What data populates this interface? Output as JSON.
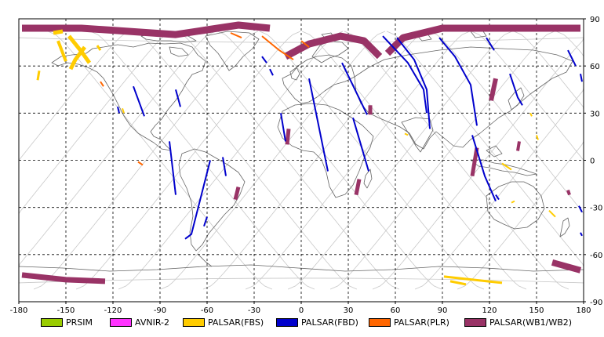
{
  "map": {
    "x_ticks": [
      "-180",
      "-150",
      "-120",
      "-90",
      "-60",
      "-30",
      "0",
      "30",
      "60",
      "90",
      "120",
      "150",
      "180"
    ],
    "y_ticks": [
      "90",
      "60",
      "30",
      "0",
      "-30",
      "-60",
      "-90"
    ],
    "x_range": [
      -180,
      180
    ],
    "y_range": [
      -90,
      90
    ],
    "grid": "dashed",
    "colors": {
      "land_outline": "#666666",
      "orbit_track": "#c8c8c8",
      "grid": "#000000"
    }
  },
  "legend": [
    {
      "label": "PRSIM",
      "color": "#99cc00"
    },
    {
      "label": "AVNIR-2",
      "color": "#ff33ff"
    },
    {
      "label": "PALSAR(FBS)",
      "color": "#ffcc00"
    },
    {
      "label": "PALSAR(FBD)",
      "color": "#0000cc"
    },
    {
      "label": "PALSAR(PLR)",
      "color": "#ff6600"
    },
    {
      "label": "PALSAR(WB1/WB2)",
      "color": "#993366"
    }
  ],
  "observations": [
    {
      "sensor": "PALSAR(WB1/WB2)",
      "path": [
        [
          -178,
          84
        ],
        [
          -140,
          84
        ],
        [
          -110,
          82
        ],
        [
          -80,
          80
        ],
        [
          -60,
          83
        ],
        [
          -40,
          86
        ],
        [
          -20,
          84
        ]
      ],
      "width": 9
    },
    {
      "sensor": "PALSAR(WB1/WB2)",
      "path": [
        [
          -10,
          66
        ],
        [
          5,
          74
        ],
        [
          25,
          79
        ],
        [
          40,
          76
        ],
        [
          50,
          66
        ]
      ],
      "width": 9
    },
    {
      "sensor": "PALSAR(WB1/WB2)",
      "path": [
        [
          55,
          68
        ],
        [
          65,
          78
        ],
        [
          90,
          84
        ],
        [
          130,
          84
        ],
        [
          178,
          84
        ]
      ],
      "width": 9
    },
    {
      "sensor": "PALSAR(WB1/WB2)",
      "path": [
        [
          -178,
          -73
        ],
        [
          -150,
          -76
        ],
        [
          -125,
          -77
        ]
      ],
      "width": 7
    },
    {
      "sensor": "PALSAR(WB1/WB2)",
      "path": [
        [
          160,
          -65
        ],
        [
          178,
          -70
        ]
      ],
      "width": 8
    },
    {
      "sensor": "PALSAR(WB1/WB2)",
      "path": [
        [
          124,
          52
        ],
        [
          121,
          38
        ]
      ],
      "width": 6
    },
    {
      "sensor": "PALSAR(WB1/WB2)",
      "path": [
        [
          112,
          8
        ],
        [
          109,
          -10
        ]
      ],
      "width": 5
    },
    {
      "sensor": "PALSAR(WB1/WB2)",
      "path": [
        [
          -8,
          20
        ],
        [
          -9,
          10
        ]
      ],
      "width": 5
    },
    {
      "sensor": "PALSAR(WB1/WB2)",
      "path": [
        [
          44,
          35
        ],
        [
          44,
          29
        ]
      ],
      "width": 5
    },
    {
      "sensor": "PALSAR(WB1/WB2)",
      "path": [
        [
          37,
          -12
        ],
        [
          35,
          -22
        ]
      ],
      "width": 5
    },
    {
      "sensor": "PALSAR(WB1/WB2)",
      "path": [
        [
          -40,
          -17
        ],
        [
          -42,
          -25
        ]
      ],
      "width": 5
    },
    {
      "sensor": "PALSAR(WB1/WB2)",
      "path": [
        [
          139,
          12
        ],
        [
          138,
          6
        ]
      ],
      "width": 4
    },
    {
      "sensor": "PALSAR(WB1/WB2)",
      "path": [
        [
          170,
          -19
        ],
        [
          171,
          -22
        ]
      ],
      "width": 4
    },
    {
      "sensor": "PALSAR(FBD)",
      "path": [
        [
          -107,
          47
        ],
        [
          -100,
          28
        ]
      ],
      "width": 2
    },
    {
      "sensor": "PALSAR(FBD)",
      "path": [
        [
          -80,
          45
        ],
        [
          -77,
          34
        ]
      ],
      "width": 2
    },
    {
      "sensor": "PALSAR(FBD)",
      "path": [
        [
          -84,
          12
        ],
        [
          -80,
          -22
        ]
      ],
      "width": 2
    },
    {
      "sensor": "PALSAR(FBD)",
      "path": [
        [
          -58,
          0
        ],
        [
          -70,
          -47
        ],
        [
          -74,
          -50
        ]
      ],
      "width": 2
    },
    {
      "sensor": "PALSAR(FBD)",
      "path": [
        [
          -50,
          2
        ],
        [
          -48,
          -10
        ]
      ],
      "width": 2
    },
    {
      "sensor": "PALSAR(FBD)",
      "path": [
        [
          -60,
          -36
        ],
        [
          -62,
          -42
        ]
      ],
      "width": 2
    },
    {
      "sensor": "PALSAR(FBD)",
      "path": [
        [
          -25,
          66
        ],
        [
          -22,
          62
        ]
      ],
      "width": 2
    },
    {
      "sensor": "PALSAR(FBD)",
      "path": [
        [
          -20,
          58
        ],
        [
          -18,
          54
        ]
      ],
      "width": 2
    },
    {
      "sensor": "PALSAR(FBD)",
      "path": [
        [
          -13,
          30
        ],
        [
          -10,
          12
        ]
      ],
      "width": 2
    },
    {
      "sensor": "PALSAR(FBD)",
      "path": [
        [
          5,
          52
        ],
        [
          17,
          -7
        ]
      ],
      "width": 2
    },
    {
      "sensor": "PALSAR(FBD)",
      "path": [
        [
          26,
          62
        ],
        [
          42,
          29
        ]
      ],
      "width": 2
    },
    {
      "sensor": "PALSAR(FBD)",
      "path": [
        [
          33,
          27
        ],
        [
          43,
          -7
        ]
      ],
      "width": 2
    },
    {
      "sensor": "PALSAR(FBD)",
      "path": [
        [
          52,
          79
        ],
        [
          68,
          62
        ],
        [
          78,
          45
        ],
        [
          80,
          30
        ]
      ],
      "width": 2
    },
    {
      "sensor": "PALSAR(FBD)",
      "path": [
        [
          61,
          78
        ],
        [
          72,
          64
        ],
        [
          80,
          45
        ],
        [
          82,
          20
        ]
      ],
      "width": 2
    },
    {
      "sensor": "PALSAR(FBD)",
      "path": [
        [
          88,
          78
        ],
        [
          98,
          66
        ],
        [
          108,
          48
        ],
        [
          112,
          22
        ]
      ],
      "width": 2
    },
    {
      "sensor": "PALSAR(FBD)",
      "path": [
        [
          109,
          16
        ],
        [
          117,
          -10
        ],
        [
          124,
          -26
        ]
      ],
      "width": 2
    },
    {
      "sensor": "PALSAR(FBD)",
      "path": [
        [
          118,
          78
        ],
        [
          123,
          70
        ]
      ],
      "width": 2
    },
    {
      "sensor": "PALSAR(FBD)",
      "path": [
        [
          124,
          -22
        ],
        [
          126,
          -25
        ]
      ],
      "width": 2
    },
    {
      "sensor": "PALSAR(FBD)",
      "path": [
        [
          133,
          55
        ],
        [
          138,
          40
        ],
        [
          141,
          35
        ]
      ],
      "width": 2
    },
    {
      "sensor": "PALSAR(FBD)",
      "path": [
        [
          170,
          70
        ],
        [
          175,
          60
        ]
      ],
      "width": 2
    },
    {
      "sensor": "PALSAR(FBD)",
      "path": [
        [
          -117,
          34
        ],
        [
          -116,
          30
        ]
      ],
      "width": 2
    },
    {
      "sensor": "PALSAR(FBD)",
      "path": [
        [
          177,
          -29
        ],
        [
          179,
          -33
        ]
      ],
      "width": 2
    },
    {
      "sensor": "PALSAR(FBD)",
      "path": [
        [
          178,
          -46
        ],
        [
          179,
          -48
        ]
      ],
      "width": 2
    },
    {
      "sensor": "PALSAR(FBD)",
      "path": [
        [
          178,
          55
        ],
        [
          179,
          50
        ]
      ],
      "width": 2
    },
    {
      "sensor": "PALSAR(FBS)",
      "path": [
        [
          -158,
          81
        ],
        [
          -152,
          82
        ]
      ],
      "width": 5
    },
    {
      "sensor": "PALSAR(FBS)",
      "path": [
        [
          -148,
          79
        ],
        [
          -140,
          69
        ],
        [
          -135,
          62
        ]
      ],
      "width": 5
    },
    {
      "sensor": "PALSAR(FBS)",
      "path": [
        [
          -138,
          72
        ],
        [
          -144,
          64
        ],
        [
          -147,
          58
        ]
      ],
      "width": 5
    },
    {
      "sensor": "PALSAR(FBS)",
      "path": [
        [
          -155,
          76
        ],
        [
          -150,
          63
        ]
      ],
      "width": 4
    },
    {
      "sensor": "PALSAR(FBS)",
      "path": [
        [
          -167,
          57
        ],
        [
          -168,
          51
        ]
      ],
      "width": 3
    },
    {
      "sensor": "PALSAR(FBS)",
      "path": [
        [
          -130,
          73
        ],
        [
          -128,
          70
        ]
      ],
      "width": 3
    },
    {
      "sensor": "PALSAR(FBS)",
      "path": [
        [
          91,
          -74
        ],
        [
          128,
          -78
        ]
      ],
      "width": 3
    },
    {
      "sensor": "PALSAR(FBS)",
      "path": [
        [
          95,
          -77
        ],
        [
          105,
          -79
        ]
      ],
      "width": 3
    },
    {
      "sensor": "PALSAR(FBS)",
      "path": [
        [
          128,
          -2
        ],
        [
          134,
          -6
        ]
      ],
      "width": 2
    },
    {
      "sensor": "PALSAR(FBS)",
      "path": [
        [
          150,
          16
        ],
        [
          151,
          13
        ]
      ],
      "width": 2
    },
    {
      "sensor": "PALSAR(FBS)",
      "path": [
        [
          146,
          30
        ],
        [
          147,
          28
        ]
      ],
      "width": 2
    },
    {
      "sensor": "PALSAR(FBS)",
      "path": [
        [
          158,
          -32
        ],
        [
          162,
          -36
        ]
      ],
      "width": 2
    },
    {
      "sensor": "PALSAR(FBS)",
      "path": [
        [
          136,
          -26
        ],
        [
          134,
          -27
        ]
      ],
      "width": 2
    },
    {
      "sensor": "PALSAR(FBS)",
      "path": [
        [
          66,
          17
        ],
        [
          68,
          16
        ]
      ],
      "width": 2
    },
    {
      "sensor": "PALSAR(FBS)",
      "path": [
        [
          -114,
          33
        ],
        [
          -113,
          30
        ]
      ],
      "width": 2
    },
    {
      "sensor": "PALSAR(PLR)",
      "path": [
        [
          -25,
          79
        ],
        [
          -14,
          70
        ],
        [
          -5,
          64
        ]
      ],
      "width": 2
    },
    {
      "sensor": "PALSAR(PLR)",
      "path": [
        [
          -45,
          81
        ],
        [
          -38,
          78
        ]
      ],
      "width": 2
    },
    {
      "sensor": "PALSAR(PLR)",
      "path": [
        [
          -128,
          50
        ],
        [
          -126,
          47
        ]
      ],
      "width": 2
    },
    {
      "sensor": "PALSAR(PLR)",
      "path": [
        [
          -104,
          -1
        ],
        [
          -101,
          -3
        ]
      ],
      "width": 2
    },
    {
      "sensor": "PALSAR(PLR)",
      "path": [
        [
          0,
          76
        ],
        [
          5,
          72
        ]
      ],
      "width": 2
    }
  ]
}
